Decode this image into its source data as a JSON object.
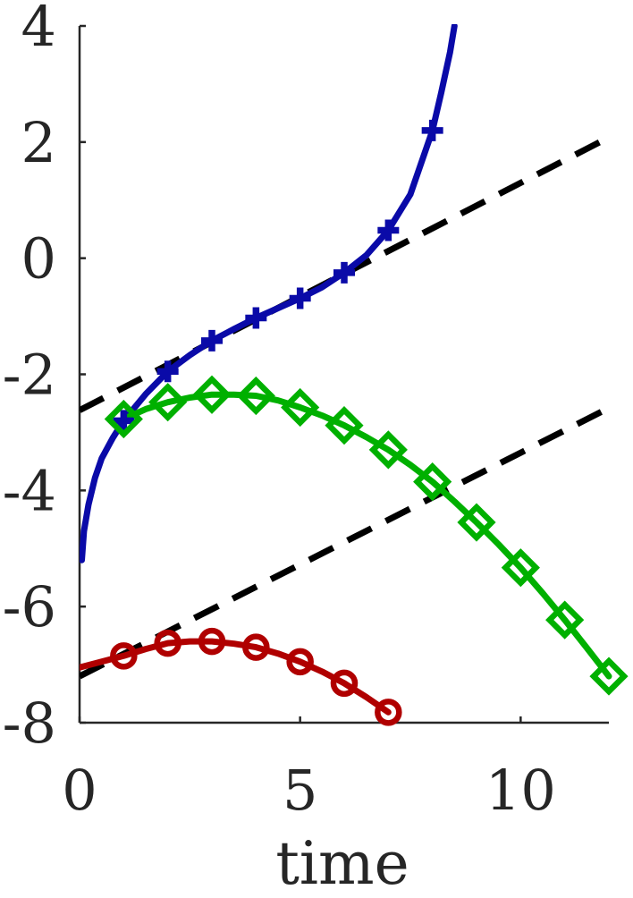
{
  "chart_data": {
    "type": "line",
    "xlabel": "time",
    "ylabel": "",
    "xlim": [
      0,
      12
    ],
    "ylim": [
      -8,
      4
    ],
    "x_ticks": [
      0,
      5,
      10
    ],
    "x_tick_labels": [
      "0",
      "5",
      "10"
    ],
    "y_ticks": [
      -8,
      -6,
      -4,
      -2,
      0,
      2,
      4
    ],
    "y_tick_labels": [
      "-8",
      "-6",
      "-4",
      "-2",
      "0",
      "2",
      "4"
    ],
    "grid": false,
    "legend": "none",
    "series": [
      {
        "color": "#0a0aa8",
        "marker": "plus",
        "markers": {
          "x": [
            1,
            2,
            3,
            4,
            5,
            6,
            7,
            8
          ],
          "y": [
            -2.8,
            -1.95,
            -1.42,
            -1.03,
            -0.69,
            -0.25,
            0.48,
            2.2
          ]
        },
        "curve": {
          "x": [
            0.05,
            0.1,
            0.2,
            0.35,
            0.5,
            0.75,
            1,
            1.5,
            2,
            2.5,
            3,
            3.5,
            4,
            4.5,
            5,
            5.5,
            6,
            6.5,
            7,
            7.5,
            8,
            8.2,
            8.4,
            8.5
          ],
          "y": [
            -5.2,
            -4.7,
            -4.25,
            -3.78,
            -3.45,
            -3.1,
            -2.8,
            -2.34,
            -1.95,
            -1.67,
            -1.42,
            -1.22,
            -1.03,
            -0.86,
            -0.69,
            -0.5,
            -0.25,
            0.05,
            0.48,
            1.1,
            2.2,
            2.85,
            3.55,
            4.0
          ]
        }
      },
      {
        "color": "#00b000",
        "marker": "diamond",
        "markers": {
          "x": [
            1,
            2,
            3,
            4,
            5,
            6,
            7,
            8,
            9,
            10,
            11,
            12
          ],
          "y": [
            -2.77,
            -2.48,
            -2.35,
            -2.37,
            -2.57,
            -2.88,
            -3.3,
            -3.85,
            -4.55,
            -5.33,
            -6.23,
            -7.2
          ]
        },
        "curve": {
          "x": [
            1,
            1.5,
            2,
            2.5,
            3,
            3.5,
            4,
            4.5,
            5,
            5.5,
            6,
            6.5,
            7,
            7.5,
            8,
            8.5,
            9,
            9.5,
            10,
            10.5,
            11,
            11.5,
            12
          ],
          "y": [
            -2.77,
            -2.6,
            -2.48,
            -2.4,
            -2.35,
            -2.35,
            -2.37,
            -2.45,
            -2.57,
            -2.71,
            -2.88,
            -3.08,
            -3.3,
            -3.56,
            -3.85,
            -4.19,
            -4.55,
            -4.93,
            -5.33,
            -5.77,
            -6.23,
            -6.71,
            -7.2
          ]
        }
      },
      {
        "color": "#b00000",
        "marker": "circle",
        "markers": {
          "x": [
            1,
            2,
            3,
            4,
            5,
            6,
            7
          ],
          "y": [
            -6.85,
            -6.63,
            -6.6,
            -6.7,
            -6.95,
            -7.32,
            -7.82
          ]
        },
        "curve": {
          "x": [
            0,
            0.5,
            1,
            1.5,
            2,
            2.5,
            3,
            3.5,
            4,
            4.5,
            5,
            5.5,
            6,
            6.5,
            7
          ],
          "y": [
            -7.05,
            -6.95,
            -6.85,
            -6.73,
            -6.63,
            -6.6,
            -6.6,
            -6.64,
            -6.7,
            -6.81,
            -6.95,
            -7.12,
            -7.32,
            -7.56,
            -7.82
          ]
        }
      },
      {
        "color": "#000000",
        "style": "dashed",
        "x": [
          0,
          12
        ],
        "y": [
          -2.62,
          2.08
        ]
      },
      {
        "color": "#000000",
        "style": "dashed",
        "x": [
          0,
          12
        ],
        "y": [
          -7.2,
          -2.58
        ]
      }
    ]
  }
}
